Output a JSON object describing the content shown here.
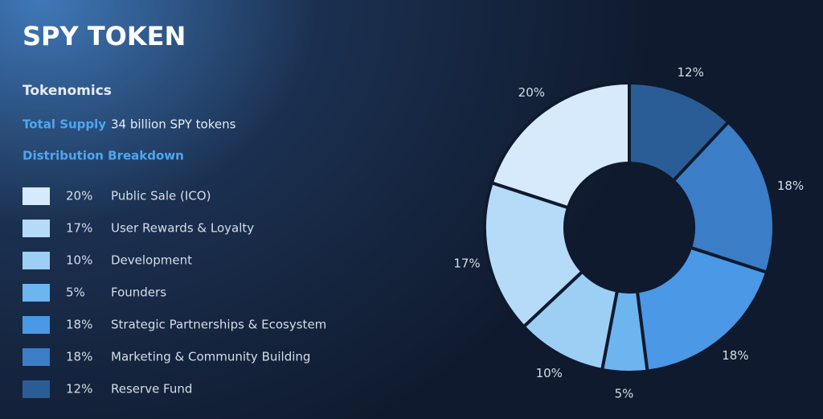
{
  "title": "SPY TOKEN",
  "section": "Tokenomics",
  "supply_label": "Total Supply",
  "supply_value": "34 billion SPY tokens",
  "breakdown_label": "Distribution Breakdown",
  "chart_data": {
    "type": "donut",
    "categories": [
      "Public Sale (ICO)",
      "User Rewards & Loyalty",
      "Development",
      "Founders",
      "Strategic Partnerships & Ecosystem",
      "Marketing & Community Building",
      "Reserve Fund"
    ],
    "values": [
      20,
      17,
      10,
      5,
      18,
      18,
      12
    ],
    "value_labels": [
      "20%",
      "17%",
      "10%",
      "5%",
      "18%",
      "18%",
      "12%"
    ],
    "colors": [
      "#d6eafc",
      "#b5dbf8",
      "#9dcff5",
      "#6db5ef",
      "#4a98e6",
      "#3b7dc6",
      "#2a5d95"
    ]
  }
}
